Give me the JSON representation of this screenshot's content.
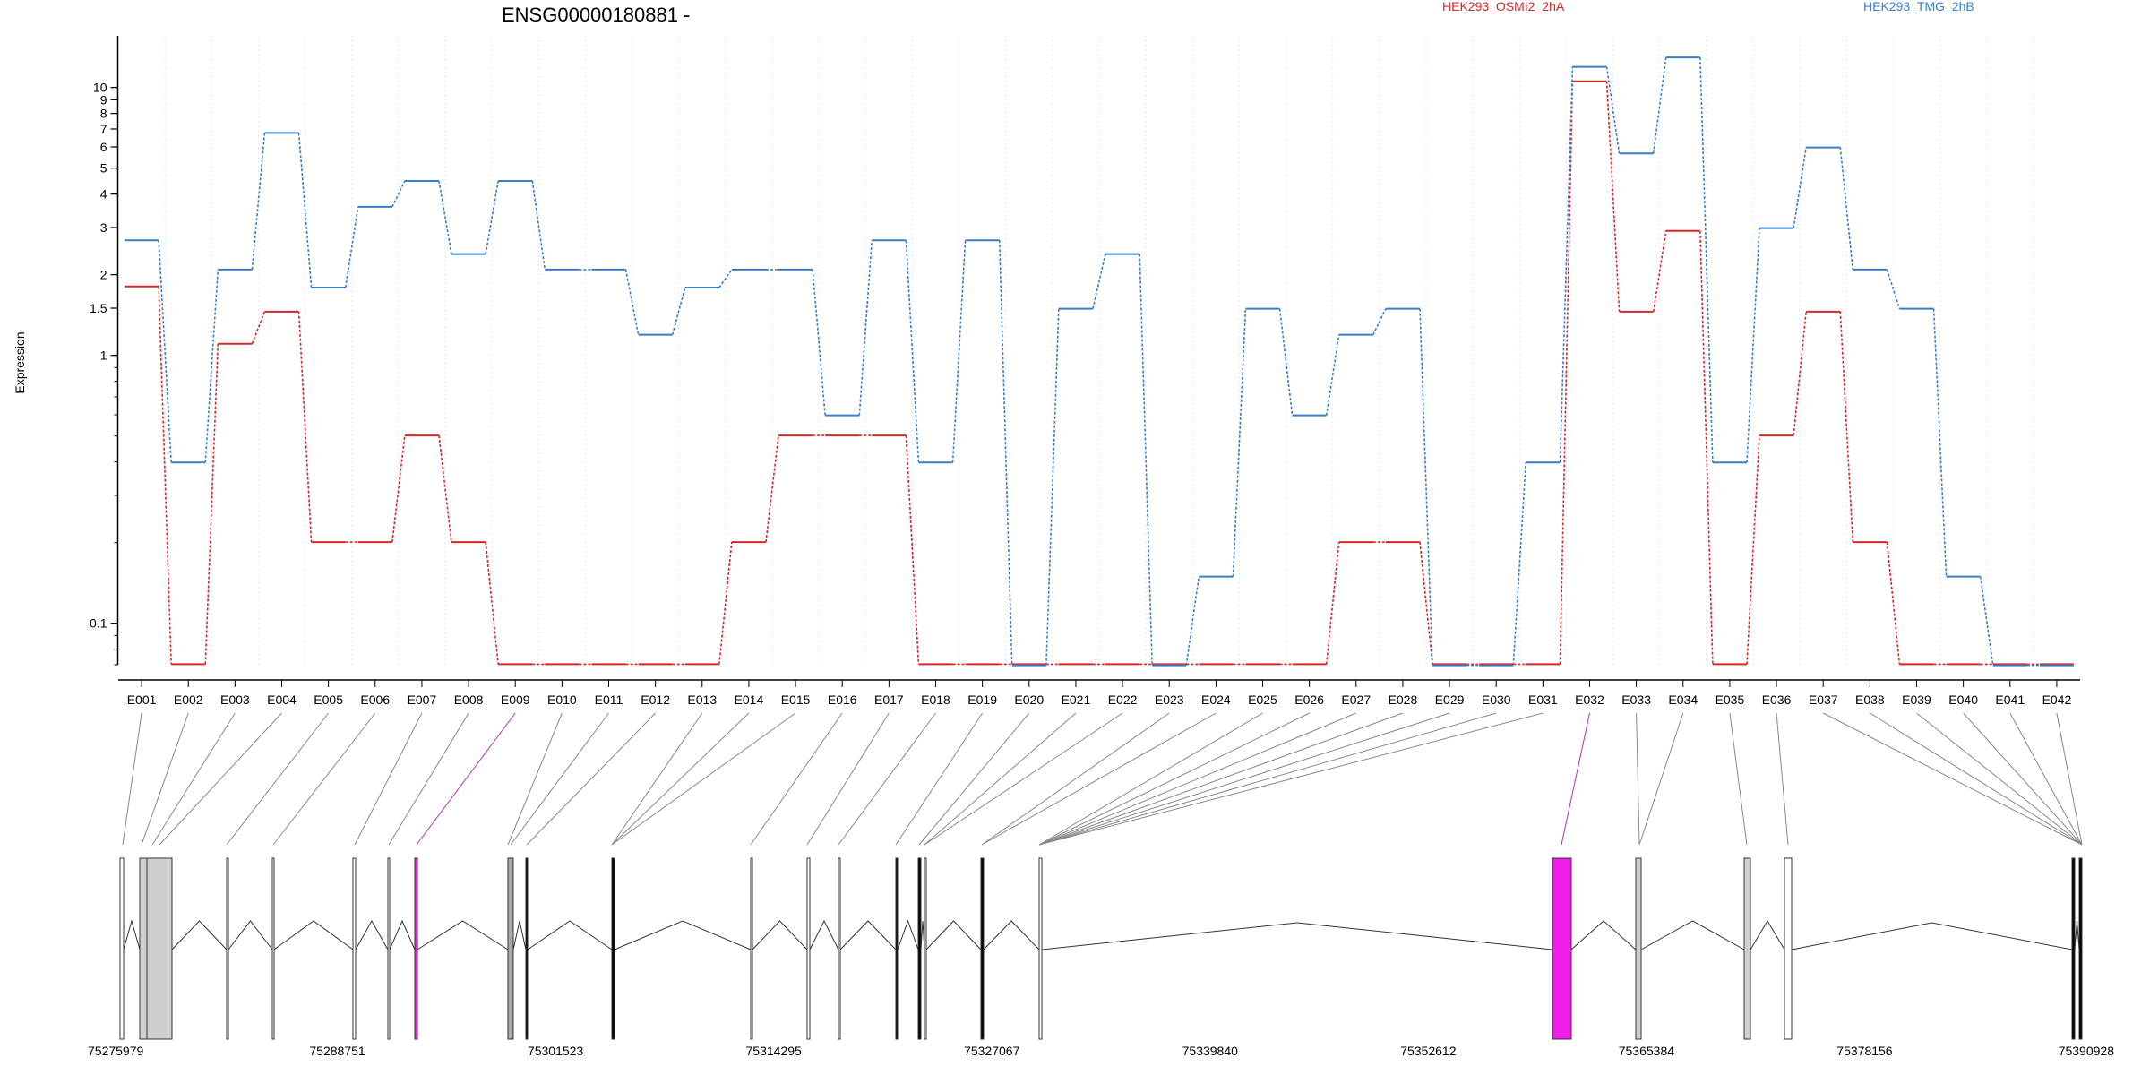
{
  "chart_data": {
    "type": "line",
    "title": "ENSG00000180881 -",
    "ylabel": "Expression",
    "yscale": "log",
    "ylim": [
      0.07,
      15
    ],
    "y_ticks": [
      {
        "value": 0.1,
        "label": "0.1"
      },
      {
        "value": 1,
        "label": "1"
      },
      {
        "value": 1.5,
        "label": "1.5"
      },
      {
        "value": 2,
        "label": "2"
      },
      {
        "value": 3,
        "label": "3"
      },
      {
        "value": 4,
        "label": "4"
      },
      {
        "value": 5,
        "label": "5"
      },
      {
        "value": 6,
        "label": "6"
      },
      {
        "value": 7,
        "label": "7"
      },
      {
        "value": 8,
        "label": "8"
      },
      {
        "value": 9,
        "label": "9"
      },
      {
        "value": 10,
        "label": "10"
      }
    ],
    "categories": [
      "E001",
      "E002",
      "E003",
      "E004",
      "E005",
      "E006",
      "E007",
      "E008",
      "E009",
      "E010",
      "E011",
      "E012",
      "E013",
      "E014",
      "E015",
      "E016",
      "E017",
      "E018",
      "E019",
      "E020",
      "E021",
      "E022",
      "E023",
      "E024",
      "E025",
      "E026",
      "E027",
      "E028",
      "E029",
      "E030",
      "E031",
      "E032",
      "E033",
      "E034",
      "E035",
      "E036",
      "E037",
      "E038",
      "E039",
      "E040",
      "E041",
      "E042"
    ],
    "series": [
      {
        "name": "HEK293_OSMI2_2hA",
        "color": "#d62728",
        "values": [
          1.8,
          0.07,
          1.1,
          1.45,
          0.2,
          0.2,
          0.5,
          0.2,
          0.07,
          0.07,
          0.07,
          0.07,
          0.07,
          0.2,
          0.5,
          0.5,
          0.5,
          0.07,
          0.07,
          0.07,
          0.07,
          0.07,
          0.07,
          0.07,
          0.07,
          0.07,
          0.2,
          0.2,
          0.07,
          0.07,
          0.07,
          10.5,
          1.45,
          2.9,
          0.07,
          0.5,
          1.45,
          0.2,
          0.07,
          0.07,
          0.07,
          0.07
        ]
      },
      {
        "name": "HEK293_TMG_2hB",
        "color": "#3a7dc9",
        "values": [
          2.7,
          0.4,
          2.1,
          6.8,
          1.8,
          3.6,
          4.5,
          2.4,
          4.5,
          2.1,
          2.1,
          1.2,
          1.8,
          2.1,
          2.1,
          0.6,
          2.7,
          0.4,
          2.7,
          0.07,
          1.5,
          2.4,
          0.07,
          0.15,
          1.5,
          0.6,
          1.2,
          1.5,
          0.07,
          0.07,
          0.4,
          12.0,
          5.7,
          13.0,
          0.4,
          3.0,
          6.0,
          2.1,
          1.5,
          0.15,
          0.07,
          0.07
        ]
      }
    ],
    "grid": "vertical dotted",
    "legend": "top-right",
    "gene_track": {
      "coordinates": [
        "75275979",
        "75288751",
        "75301523",
        "75314295",
        "75327067",
        "75339840",
        "75352612",
        "75365384",
        "75378156",
        "75390928"
      ],
      "highlight_color": "#ee1ee6",
      "highlighted_exons": [
        "E009",
        "E032"
      ]
    }
  }
}
